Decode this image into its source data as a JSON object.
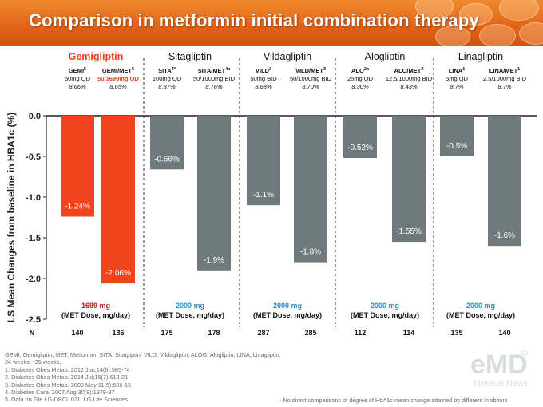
{
  "header": {
    "title": "Comparison in metformin initial combination therapy"
  },
  "colors": {
    "banner": "#e3651a",
    "gemi_bar": "#f0441c",
    "other_bar": "#6f7a7f",
    "gemi_text": "#e8401a",
    "dose_blue": "#2a8fc6"
  },
  "chart_data": {
    "type": "bar",
    "ylabel": "LS Mean Changes from baseline in HBA1c (%)",
    "ylim": [
      -2.5,
      0.0
    ],
    "yticks": [
      "0.0",
      "-0.5",
      "-1.0",
      "-1.5",
      "-2.0",
      "-2.5"
    ],
    "ytick_values": [
      0.0,
      -0.5,
      -1.0,
      -1.5,
      -2.0,
      -2.5
    ],
    "n_label": "N",
    "groups": [
      {
        "name": "Gemigliptin",
        "highlight": true,
        "dose_value": "1699 mg",
        "dose_note": "(MET Dose, mg/day)"
      },
      {
        "name": "Sitagliptin",
        "highlight": false,
        "dose_value": "2000 mg",
        "dose_note": "(MET Dose, mg/day)"
      },
      {
        "name": "Vildagliptin",
        "highlight": false,
        "dose_value": "2000 mg",
        "dose_note": "(MET Dose, mg/day)"
      },
      {
        "name": "Alogliptin",
        "highlight": false,
        "dose_value": "2000 mg",
        "dose_note": "(MET Dose, mg/day)"
      },
      {
        "name": "Linagliptin",
        "highlight": false,
        "dose_value": "2000 mg",
        "dose_note": "(MET Dose, mg/day)"
      }
    ],
    "bars": [
      {
        "group": 0,
        "arm": "GEMI",
        "sup": "5",
        "dose": "50mg QD",
        "baseline": "8.66%",
        "value": -1.24,
        "label": "-1.24%",
        "n": "140",
        "highlight": true
      },
      {
        "group": 0,
        "arm": "GEMI/MET",
        "sup": "5",
        "dose": "50/1699mg QD",
        "baseline": "8.65%",
        "value": -2.06,
        "label": "-2.06%",
        "n": "136",
        "highlight": true
      },
      {
        "group": 1,
        "arm": "SITA",
        "sup": "4*",
        "dose": "100mg QD",
        "baseline": "8.87%",
        "value": -0.66,
        "label": "-0.66%",
        "n": "175",
        "highlight": false
      },
      {
        "group": 1,
        "arm": "SITA/MET",
        "sup": "4a",
        "dose": "50/1000mg BID",
        "baseline": "8.76%",
        "value": -1.9,
        "label": "-1.9%",
        "n": "178",
        "highlight": false
      },
      {
        "group": 2,
        "arm": "VILD",
        "sup": "3",
        "dose": "50mg BID",
        "baseline": "8.68%",
        "value": -1.1,
        "label": "-1.1%",
        "n": "287",
        "highlight": false
      },
      {
        "group": 2,
        "arm": "VILD/MET",
        "sup": "3",
        "dose": "50/1000mg BID",
        "baseline": "8.70%",
        "value": -1.8,
        "label": "-1.8%",
        "n": "285",
        "highlight": false
      },
      {
        "group": 3,
        "arm": "ALO",
        "sup": "2a",
        "dose": "25mg QD",
        "baseline": "8.30%",
        "value": -0.52,
        "label": "-0.52%",
        "n": "112",
        "highlight": false
      },
      {
        "group": 3,
        "arm": "ALO/MET",
        "sup": "2",
        "dose": "12.5/1000mg BID",
        "baseline": "8.43%",
        "value": -1.55,
        "label": "-1.55%",
        "n": "114",
        "highlight": false
      },
      {
        "group": 4,
        "arm": "LINA",
        "sup": "1",
        "dose": "5mg QD",
        "baseline": "8.7%",
        "value": -0.5,
        "label": "-0.5%",
        "n": "135",
        "highlight": false
      },
      {
        "group": 4,
        "arm": "LINA/MET",
        "sup": "1",
        "dose": "2.5/1000mg BID",
        "baseline": "8.7%",
        "value": -1.6,
        "label": "-1.6%",
        "n": "140",
        "highlight": false
      }
    ]
  },
  "footnotes": {
    "lines": [
      "GEMI, Gemigliptin; MET, Metformin; SITA, Sitagliptin; VILD, Vildagliptin; ALOG, Alogliptin; LINA, Linagliptin.",
      "24 weeks,  *26 weeks,",
      "1. Diabetes Obes Metab. 2012 Jun;14(6):565-74",
      "2. Diabetes Obes Metab. 2014 Jul;16(7):613-21",
      "3. Diabetes Obes Metab. 2009 May;11(5):506-15",
      "4. Diabetes Care. 2007 Aug;30(8):1979-87",
      "5. Data on File LG-DPCL 011, LG Life Sciences"
    ],
    "disclaimer": "- No direct comparisons of degree of HbA1c mean change attained by different inhibitors"
  },
  "watermark": {
    "logo": "eMD",
    "caption": "Medical News"
  }
}
